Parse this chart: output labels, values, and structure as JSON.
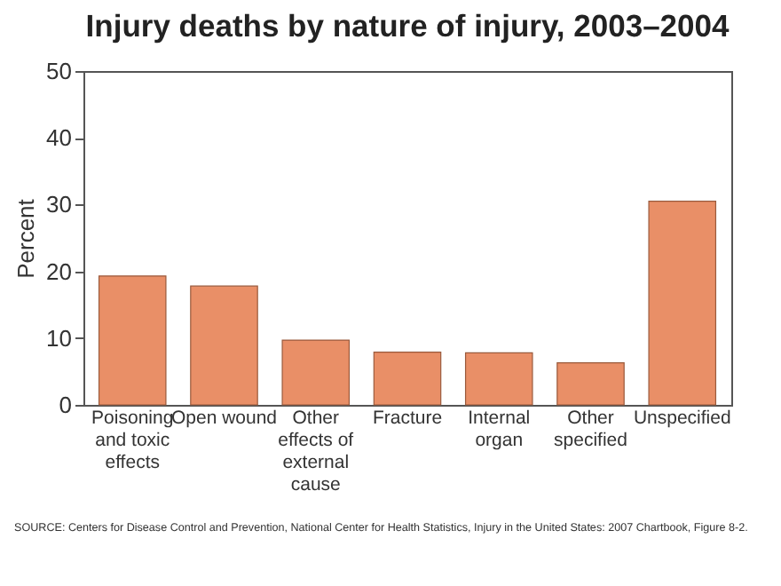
{
  "chart_data": {
    "type": "bar",
    "title": "Injury deaths by nature of injury, 2003–2004",
    "ylabel": "Percent",
    "categories": [
      "Poisoning and toxic effects",
      "Open wound",
      "Other effects of external cause",
      "Fracture",
      "Internal organ",
      "Other specified",
      "Unspecified"
    ],
    "values": [
      19.3,
      17.8,
      9.7,
      7.9,
      7.8,
      6.3,
      30.5
    ],
    "color": "#e98f67",
    "ylim": [
      0,
      50
    ],
    "yticks": [
      0,
      10,
      20,
      30,
      40,
      50
    ],
    "grid": false,
    "annotations": [
      "SOURCE: Centers for Disease Control and Prevention, National Center for Health Statistics, Injury in the United States: 2007 Chartbook, Figure 8-2."
    ]
  }
}
